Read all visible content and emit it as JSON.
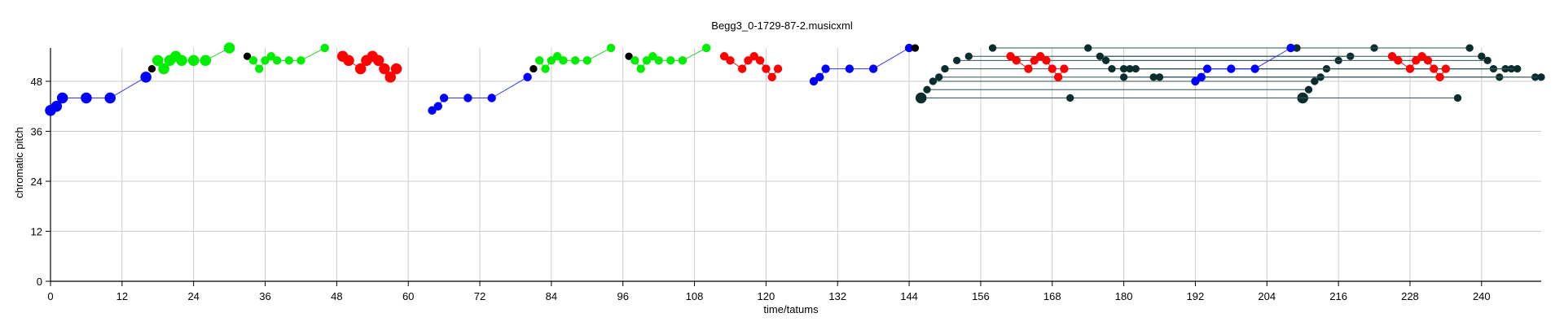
{
  "chart_data": {
    "type": "scatter",
    "title": "Begg3_0-1729-87-2.musicxml",
    "xlabel": "time/tatums",
    "ylabel": "chromatic pitch",
    "xlim": [
      0,
      250
    ],
    "ylim": [
      0,
      56
    ],
    "xticks": [
      0,
      12,
      24,
      36,
      48,
      60,
      72,
      84,
      96,
      108,
      120,
      132,
      144,
      156,
      168,
      180,
      192,
      204,
      216,
      228,
      240
    ],
    "yticks": [
      0,
      12,
      24,
      36,
      48
    ],
    "grid": true,
    "colors": {
      "blue": "#0000ff",
      "green": "#00ee00",
      "red": "#ff0000",
      "black": "#000000",
      "dark": "#0c2d2d",
      "link_blue": "#3333ff",
      "link_green": "#33cc33",
      "link_dark": "#2f5555",
      "grid": "#cccccc"
    },
    "series": [
      {
        "color": "blue",
        "connect": true,
        "points": [
          [
            0,
            41,
            1.3
          ],
          [
            1,
            42,
            1.3
          ],
          [
            2,
            44,
            1.3
          ],
          [
            6,
            44,
            1.3
          ],
          [
            10,
            44,
            1.3
          ],
          [
            16,
            49,
            1.3
          ]
        ]
      },
      {
        "color": "black",
        "connect": false,
        "points": [
          [
            17,
            51,
            0.9
          ]
        ]
      },
      {
        "color": "green",
        "connect": true,
        "points": [
          [
            18,
            53,
            1.3
          ],
          [
            19,
            51,
            1.3
          ],
          [
            20,
            53,
            1.3
          ],
          [
            21,
            54,
            1.3
          ],
          [
            22,
            53,
            1.3
          ],
          [
            24,
            53,
            1.3
          ],
          [
            26,
            53,
            1.3
          ],
          [
            30,
            56,
            1.3
          ]
        ]
      },
      {
        "color": "black",
        "connect": false,
        "points": [
          [
            33,
            54,
            0.9
          ]
        ]
      },
      {
        "color": "green",
        "connect": true,
        "points": [
          [
            34,
            53,
            1.0
          ],
          [
            35,
            51,
            1.0
          ],
          [
            36,
            53,
            1.0
          ],
          [
            37,
            54,
            1.0
          ],
          [
            38,
            53,
            1.0
          ],
          [
            40,
            53,
            1.0
          ],
          [
            42,
            53,
            1.0
          ],
          [
            46,
            56,
            1.0
          ]
        ]
      },
      {
        "color": "red",
        "connect": true,
        "points": [
          [
            49,
            54,
            1.3
          ],
          [
            50,
            53,
            1.3
          ],
          [
            52,
            51,
            1.3
          ],
          [
            53,
            53,
            1.3
          ],
          [
            54,
            54,
            1.3
          ],
          [
            55,
            53,
            1.3
          ],
          [
            56,
            51,
            1.3
          ],
          [
            57,
            49,
            1.3
          ],
          [
            58,
            51,
            1.3
          ]
        ]
      },
      {
        "color": "blue",
        "connect": true,
        "points": [
          [
            64,
            41,
            1.0
          ],
          [
            65,
            42,
            1.0
          ],
          [
            66,
            44,
            1.0
          ],
          [
            70,
            44,
            1.0
          ],
          [
            74,
            44,
            1.0
          ],
          [
            80,
            49,
            1.0
          ]
        ]
      },
      {
        "color": "black",
        "connect": false,
        "points": [
          [
            81,
            51,
            0.9
          ]
        ]
      },
      {
        "color": "green",
        "connect": true,
        "points": [
          [
            82,
            53,
            1.0
          ],
          [
            83,
            51,
            1.0
          ],
          [
            84,
            53,
            1.0
          ],
          [
            85,
            54,
            1.0
          ],
          [
            86,
            53,
            1.0
          ],
          [
            88,
            53,
            1.0
          ],
          [
            90,
            53,
            1.0
          ],
          [
            94,
            56,
            1.0
          ]
        ]
      },
      {
        "color": "black",
        "connect": false,
        "points": [
          [
            97,
            54,
            0.9
          ]
        ]
      },
      {
        "color": "green",
        "connect": true,
        "points": [
          [
            98,
            53,
            1.0
          ],
          [
            99,
            51,
            1.0
          ],
          [
            100,
            53,
            1.0
          ],
          [
            101,
            54,
            1.0
          ],
          [
            102,
            53,
            1.0
          ],
          [
            104,
            53,
            1.0
          ],
          [
            106,
            53,
            1.0
          ],
          [
            110,
            56,
            1.0
          ]
        ]
      },
      {
        "color": "red",
        "connect": true,
        "points": [
          [
            113,
            54,
            1.0
          ],
          [
            114,
            53,
            1.0
          ],
          [
            116,
            51,
            1.0
          ],
          [
            117,
            53,
            1.0
          ],
          [
            118,
            54,
            1.0
          ],
          [
            119,
            53,
            1.0
          ],
          [
            120,
            51,
            1.0
          ],
          [
            121,
            49,
            1.0
          ],
          [
            122,
            51,
            1.0
          ]
        ]
      },
      {
        "color": "blue",
        "connect": true,
        "points": [
          [
            128,
            48,
            1.0
          ],
          [
            129,
            49,
            1.0
          ],
          [
            130,
            51,
            1.0
          ],
          [
            134,
            51,
            1.0
          ],
          [
            138,
            51,
            1.0
          ],
          [
            144,
            56,
            1.0
          ]
        ]
      },
      {
        "color": "black",
        "connect": false,
        "points": [
          [
            145,
            56,
            0.9
          ]
        ]
      },
      {
        "color": "red",
        "connect": true,
        "points": [
          [
            161,
            54,
            1.0
          ],
          [
            162,
            53,
            1.0
          ],
          [
            164,
            51,
            1.0
          ],
          [
            165,
            53,
            1.0
          ],
          [
            166,
            54,
            1.0
          ],
          [
            167,
            53,
            1.0
          ],
          [
            168,
            51,
            1.0
          ],
          [
            169,
            49,
            1.0
          ],
          [
            170,
            51,
            1.0
          ]
        ]
      },
      {
        "color": "blue",
        "connect": true,
        "points": [
          [
            192,
            48,
            1.0
          ],
          [
            193,
            49,
            1.0
          ],
          [
            194,
            51,
            1.0
          ],
          [
            198,
            51,
            1.0
          ],
          [
            202,
            51,
            1.0
          ],
          [
            208,
            56,
            1.0
          ]
        ]
      },
      {
        "color": "red",
        "connect": true,
        "points": [
          [
            225,
            54,
            1.0
          ],
          [
            226,
            53,
            1.0
          ],
          [
            228,
            51,
            1.0
          ],
          [
            229,
            53,
            1.0
          ],
          [
            230,
            54,
            1.0
          ],
          [
            231,
            53,
            1.0
          ],
          [
            232,
            51,
            1.0
          ],
          [
            233,
            49,
            1.0
          ],
          [
            234,
            51,
            1.0
          ]
        ]
      }
    ],
    "links": [
      {
        "from": [
          146,
          44
        ],
        "to": [
          210,
          44
        ],
        "size": 1.3,
        "end_size": 1.3
      },
      {
        "from": [
          171,
          44
        ],
        "to": [
          236,
          44
        ],
        "size": 0.9,
        "end_size": 0.9
      },
      {
        "from": [
          147,
          46
        ],
        "to": [
          211,
          46
        ],
        "size": 0.9,
        "end_size": 0.9
      },
      {
        "from": [
          148,
          48
        ],
        "to": [
          212,
          48
        ],
        "size": 0.9,
        "end_size": 0.9
      },
      {
        "from": [
          149,
          49
        ],
        "to": [
          213,
          49
        ],
        "size": 0.9,
        "end_size": 0.9
      },
      {
        "from": [
          150,
          51
        ],
        "to": [
          214,
          51
        ],
        "size": 0.9,
        "end_size": 0.9
      },
      {
        "from": [
          152,
          53
        ],
        "to": [
          216,
          53
        ],
        "size": 0.9,
        "end_size": 0.9
      },
      {
        "from": [
          154,
          54
        ],
        "to": [
          218,
          54
        ],
        "size": 0.9,
        "end_size": 0.9
      },
      {
        "from": [
          158,
          56
        ],
        "to": [
          222,
          56
        ],
        "size": 0.9,
        "end_size": 0.9
      },
      {
        "from": [
          174,
          56
        ],
        "to": [
          238,
          56
        ],
        "size": 0.9,
        "end_size": 0.9
      },
      {
        "from": [
          176,
          54
        ],
        "to": [
          240,
          54
        ],
        "size": 0.9,
        "end_size": 0.9
      },
      {
        "from": [
          177,
          53
        ],
        "to": [
          241,
          53
        ],
        "size": 0.9,
        "end_size": 0.9
      },
      {
        "from": [
          178,
          51
        ],
        "to": [
          242,
          51
        ],
        "size": 0.9,
        "end_size": 0.9
      },
      {
        "from": [
          180,
          51
        ],
        "to": [
          244,
          51
        ],
        "size": 0.9,
        "end_size": 0.9
      },
      {
        "from": [
          181,
          51
        ],
        "to": [
          245,
          51
        ],
        "size": 0.9,
        "end_size": 0.9
      },
      {
        "from": [
          182,
          51
        ],
        "to": [
          246,
          51
        ],
        "size": 0.9,
        "end_size": 0.9
      },
      {
        "from": [
          180,
          49
        ],
        "to": [
          243,
          49
        ],
        "size": 0.9,
        "end_size": 0.9
      },
      {
        "from": [
          185,
          49
        ],
        "to": [
          249,
          49
        ],
        "size": 0.9,
        "end_size": 0.9
      },
      {
        "from": [
          186,
          49
        ],
        "to": [
          250,
          49
        ],
        "size": 0.9,
        "end_size": 0.9
      },
      {
        "from": [
          209,
          56
        ],
        "to": [
          209,
          56
        ],
        "size": 0.9,
        "end_size": 0.9
      }
    ]
  }
}
